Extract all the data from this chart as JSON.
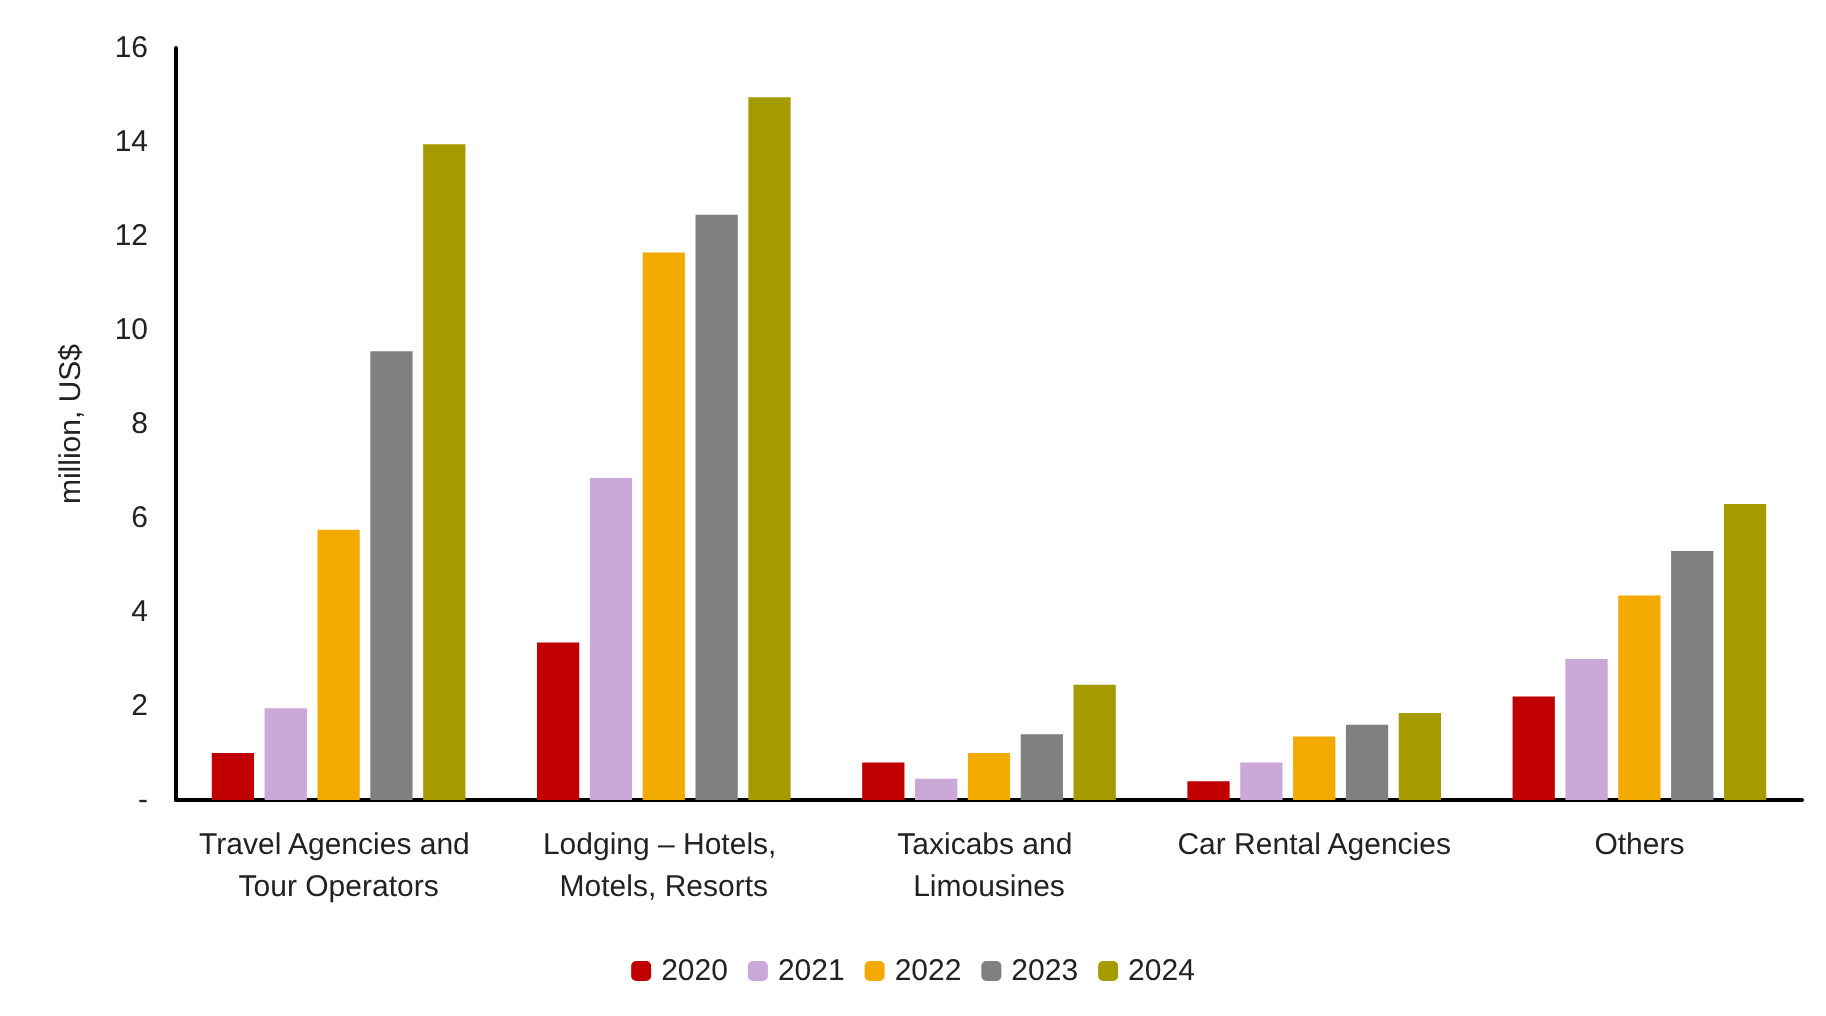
{
  "chart_data": {
    "type": "bar",
    "ylabel": "million, US$",
    "categories": [
      "Travel Agencies and Tour Operators",
      "Lodging – Hotels, Motels, Resorts",
      "Taxicabs and Limousines",
      "Car Rental Agencies",
      "Others"
    ],
    "series": [
      {
        "name": "2020",
        "color": "#c00000",
        "values": [
          1.0,
          3.35,
          0.8,
          0.4,
          2.2
        ]
      },
      {
        "name": "2021",
        "color": "#cca8d8",
        "values": [
          1.95,
          6.85,
          0.45,
          0.8,
          3.0
        ]
      },
      {
        "name": "2022",
        "color": "#f2a900",
        "values": [
          5.75,
          11.65,
          1.0,
          1.35,
          4.35
        ]
      },
      {
        "name": "2023",
        "color": "#808080",
        "values": [
          9.55,
          12.45,
          1.4,
          1.6,
          5.3
        ]
      },
      {
        "name": "2024",
        "color": "#a59a00",
        "values": [
          13.95,
          14.95,
          2.45,
          1.85,
          6.3
        ]
      }
    ],
    "ylim": [
      0,
      16
    ],
    "yticks": [
      {
        "value": 0,
        "label": "-"
      },
      2,
      4,
      6,
      8,
      10,
      12,
      14,
      16
    ],
    "grid": false,
    "legend": "bottom"
  }
}
